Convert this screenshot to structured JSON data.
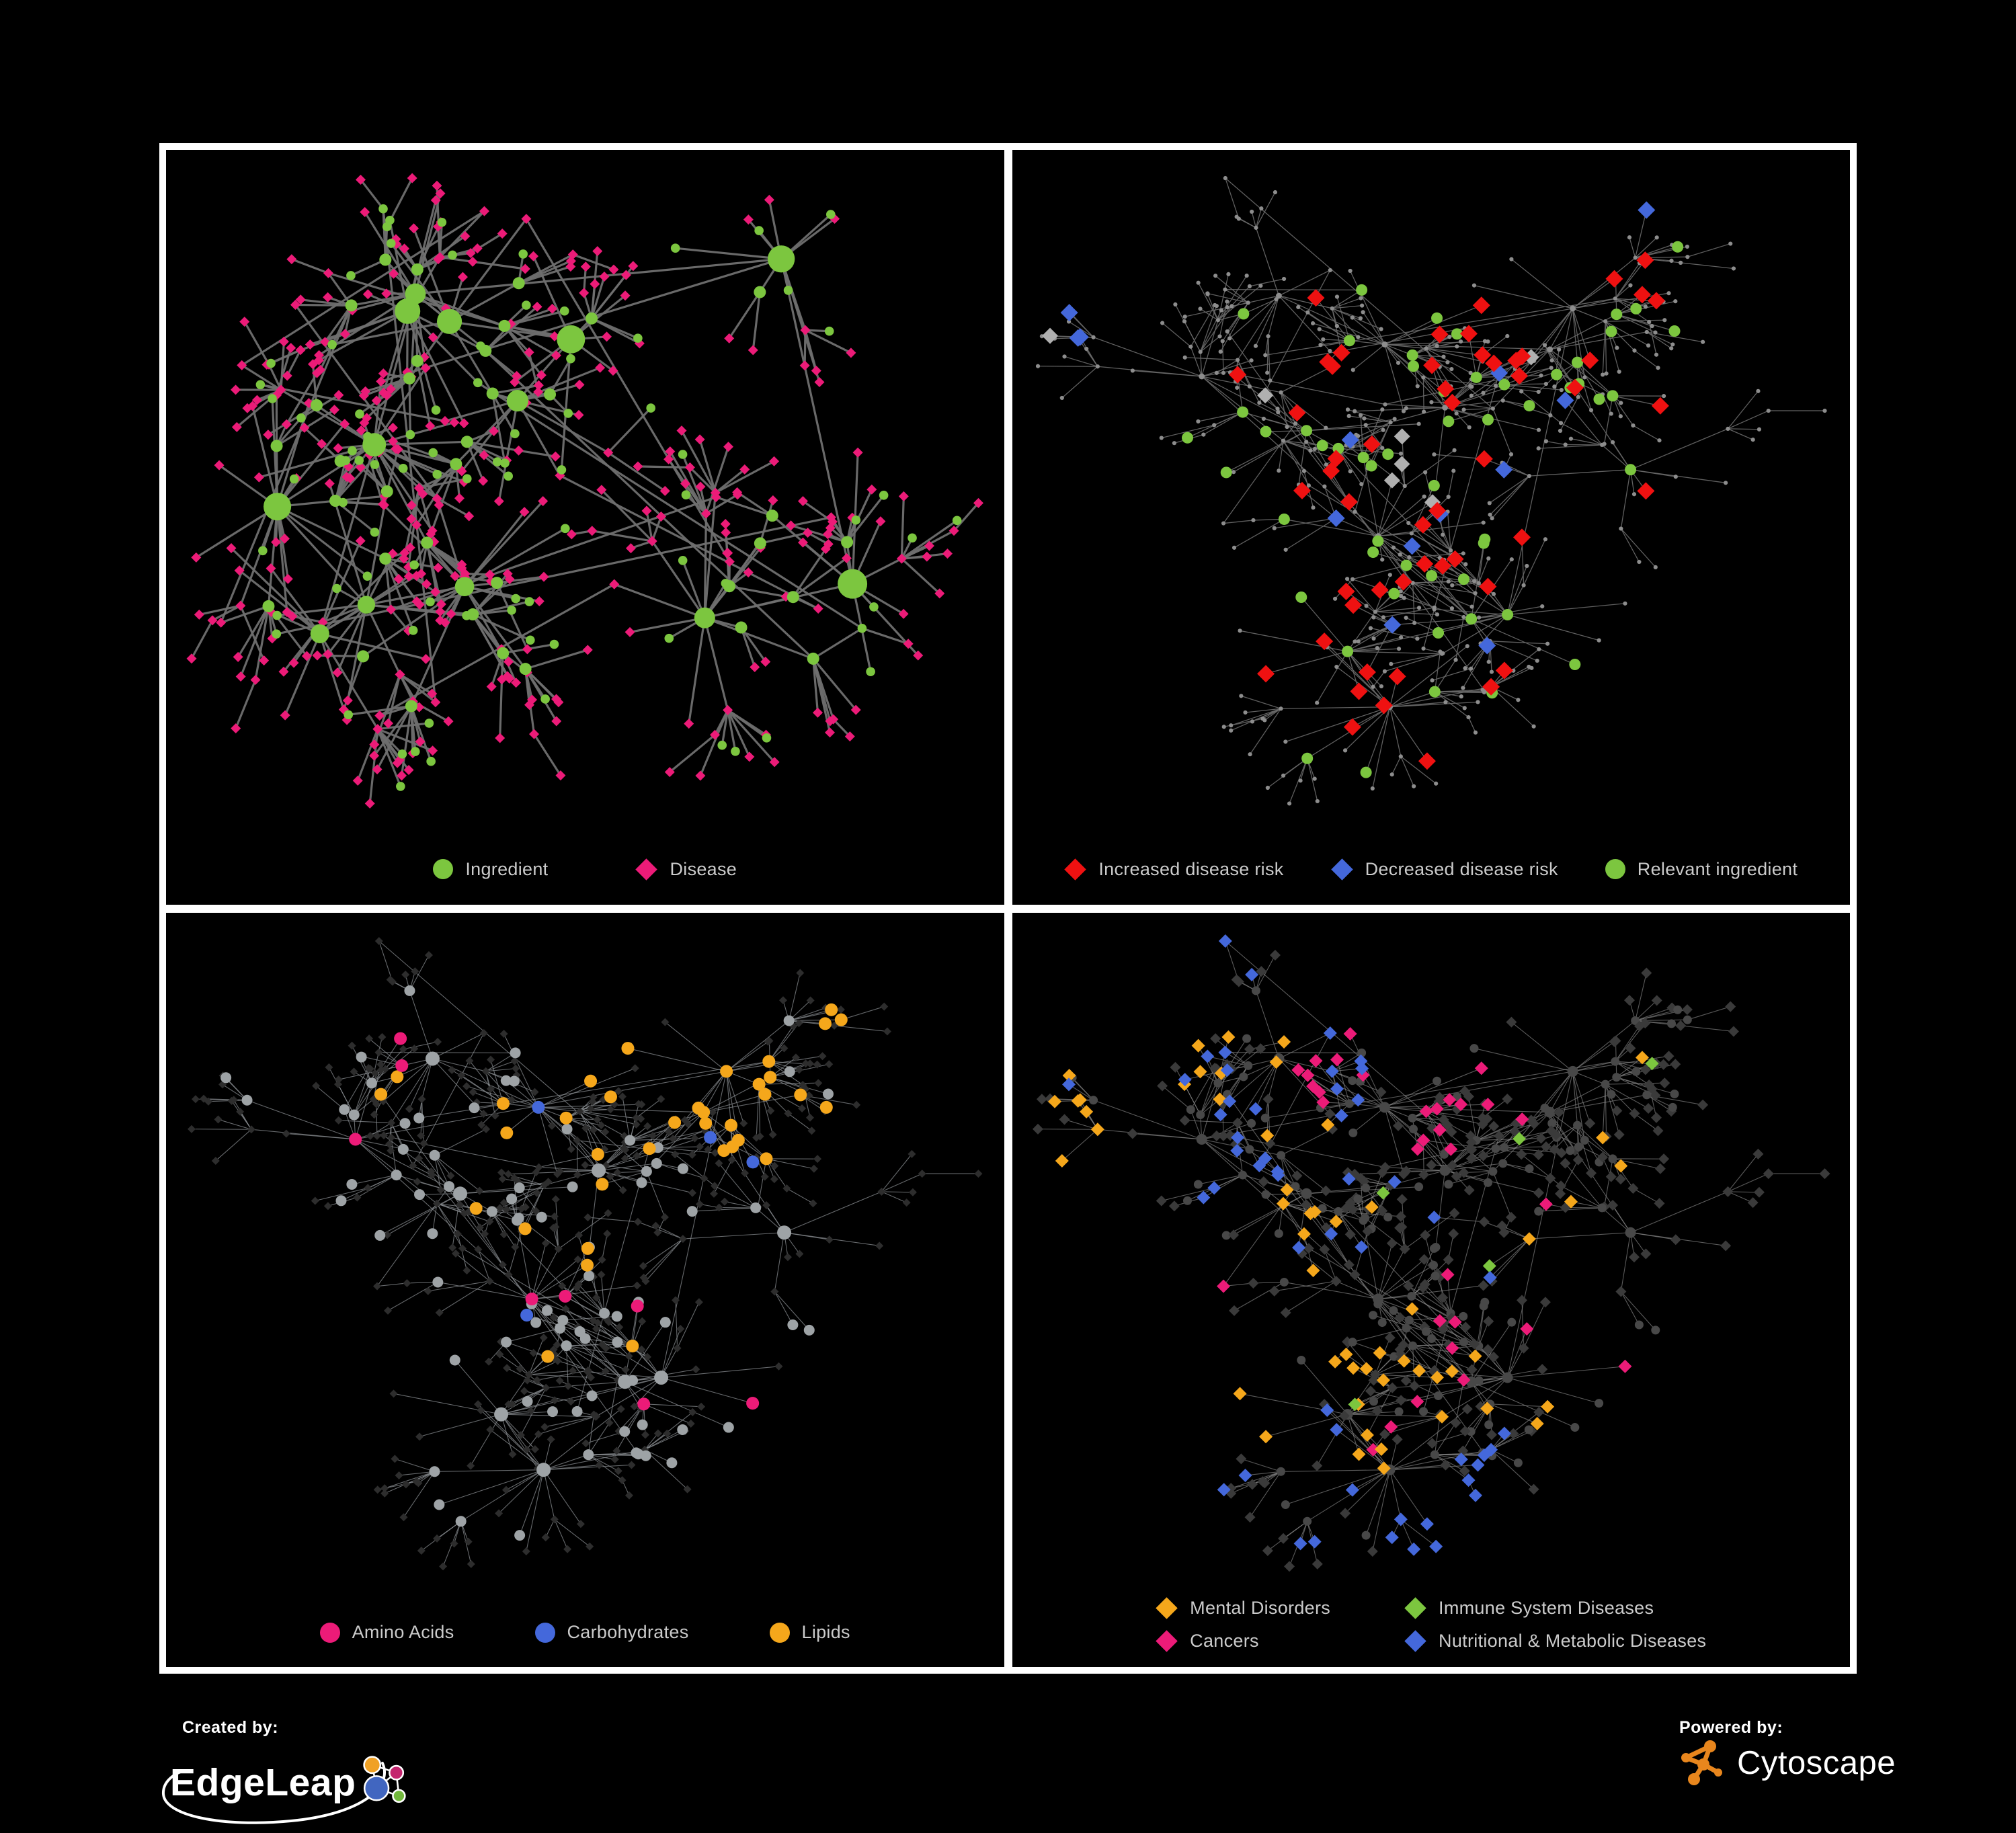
{
  "colors": {
    "background": "#000000",
    "panel_border": "#ffffff",
    "legend_text": "#cbcbcb",
    "green": "#7cc63f",
    "pink": "#ec1b78",
    "red": "#ef1111",
    "blue": "#4468db",
    "orange": "#f5a71b",
    "gray_diamond": "#b0b0b0",
    "dim_dot": "#8d8d8d",
    "gray_circle": "#9ea3a6",
    "dark_diamond": "#2d2d2d",
    "dim_diamond": "#3a3a3a",
    "dim_circle": "#484848"
  },
  "panels": [
    {
      "key": "ingredient-disease",
      "mode": "base",
      "seed": 11,
      "highlight_seed": 301,
      "style": {
        "edge_color": "#6f6f6f",
        "edge_width": 3.2,
        "edge_opacity": 0.95
      },
      "legend": {
        "columns": 0,
        "gap": 130,
        "items": [
          {
            "shape": "circle",
            "color": "#7cc63f",
            "label": "Ingredient",
            "icon": "ingredient-circle-icon"
          },
          {
            "shape": "diamond",
            "color": "#ec1b78",
            "label": "Disease",
            "icon": "disease-diamond-icon"
          }
        ]
      }
    },
    {
      "key": "disease-risk",
      "mode": "risk",
      "seed": 42,
      "highlight_seed": 907,
      "style": {
        "edge_color": "#696969",
        "edge_width": 1.3,
        "edge_opacity": 0.9
      },
      "legend": {
        "columns": 0,
        "gap": 70,
        "items": [
          {
            "shape": "diamond",
            "color": "#ef1111",
            "label": "Increased disease risk",
            "icon": "increased-risk-diamond-icon"
          },
          {
            "shape": "diamond",
            "color": "#4468db",
            "label": "Decreased disease risk",
            "icon": "decreased-risk-diamond-icon"
          },
          {
            "shape": "circle",
            "color": "#7cc63f",
            "label": "Relevant ingredient",
            "icon": "relevant-ingredient-circle-icon"
          }
        ]
      }
    },
    {
      "key": "nutrient-classes",
      "mode": "nutrient",
      "seed": 42,
      "highlight_seed": 523,
      "style": {
        "edge_color": "#8e9295",
        "edge_width": 1.1,
        "edge_opacity": 0.72
      },
      "legend": {
        "columns": 0,
        "gap": 120,
        "items": [
          {
            "shape": "circle",
            "color": "#ec1b78",
            "label": "Amino Acids",
            "icon": "amino-acids-circle-icon"
          },
          {
            "shape": "circle",
            "color": "#4468db",
            "label": "Carbohydrates",
            "icon": "carbohydrates-circle-icon"
          },
          {
            "shape": "circle",
            "color": "#f5a71b",
            "label": "Lipids",
            "icon": "lipids-circle-icon"
          }
        ]
      }
    },
    {
      "key": "disease-classes",
      "mode": "disease",
      "seed": 42,
      "highlight_seed": 777,
      "style": {
        "edge_color": "#8a8a8a",
        "edge_width": 1.1,
        "edge_opacity": 0.65
      },
      "legend": {
        "columns": 2,
        "gap": 110,
        "items": [
          {
            "shape": "diamond",
            "color": "#f5a71b",
            "label": "Mental Disorders",
            "icon": "mental-disorders-diamond-icon"
          },
          {
            "shape": "diamond",
            "color": "#7cc63f",
            "label": "Immune System Diseases",
            "icon": "immune-system-diseases-diamond-icon"
          },
          {
            "shape": "diamond",
            "color": "#ec1b78",
            "label": "Cancers",
            "icon": "cancers-diamond-icon"
          },
          {
            "shape": "diamond",
            "color": "#4468db",
            "label": "Nutritional & Metabolic Diseases",
            "icon": "nutritional-metabolic-diseases-diamond-icon"
          }
        ]
      }
    }
  ],
  "footer": {
    "created_by": "Created by:",
    "edgeleap": "EdgeLeap",
    "powered_by": "Powered by:",
    "cytoscape": "Cytoscape",
    "edgeleap_glyph_colors": {
      "blue": "#4166c0",
      "orange": "#f0a125",
      "magenta": "#c4256e",
      "green": "#72b83c"
    },
    "cytoscape_orange": "#e8861d"
  }
}
